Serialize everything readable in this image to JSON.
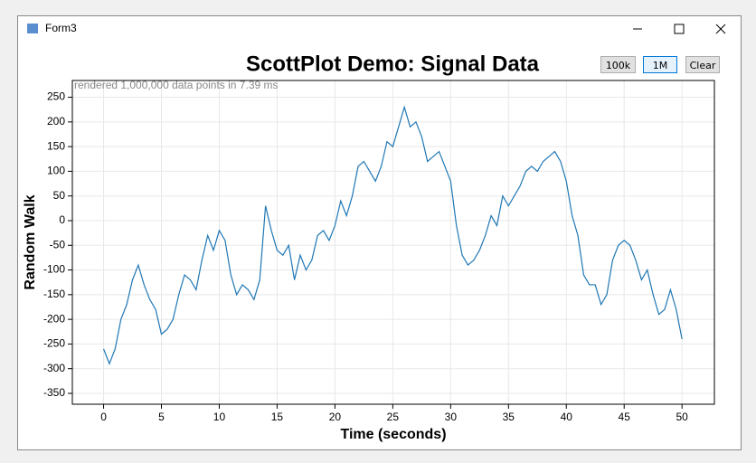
{
  "window": {
    "title": "Form3"
  },
  "buttons": [
    "100k",
    "1M",
    "Clear"
  ],
  "chart_data": {
    "type": "line",
    "title": "ScottPlot Demo: Signal Data",
    "xlabel": "Time (seconds)",
    "ylabel": "Random Walk",
    "annotation": "rendered 1,000,000 data points in 7.39 ms",
    "color": "#1f77b4",
    "grid": true,
    "x": [
      0,
      0.5,
      1,
      1.5,
      2,
      2.5,
      3,
      3.5,
      4,
      4.5,
      5,
      5.5,
      6,
      6.5,
      7,
      7.5,
      8,
      8.5,
      9,
      9.5,
      10,
      10.5,
      11,
      11.5,
      12,
      12.5,
      13,
      13.5,
      14,
      14.5,
      15,
      15.5,
      16,
      16.5,
      17,
      17.5,
      18,
      18.5,
      19,
      19.5,
      20,
      20.5,
      21,
      21.5,
      22,
      22.5,
      23,
      23.5,
      24,
      24.5,
      25,
      25.5,
      26,
      26.5,
      27,
      27.5,
      28,
      28.5,
      29,
      29.5,
      30,
      30.5,
      31,
      31.5,
      32,
      32.5,
      33,
      33.5,
      34,
      34.5,
      35,
      35.5,
      36,
      36.5,
      37,
      37.5,
      38,
      38.5,
      39,
      39.5,
      40,
      40.5,
      41,
      41.5,
      42,
      42.5,
      43,
      43.5,
      44,
      44.5,
      45,
      45.5,
      46,
      46.5,
      47,
      47.5,
      48,
      48.5,
      49,
      49.5,
      50
    ],
    "values": [
      -260,
      -290,
      -260,
      -200,
      -170,
      -120,
      -90,
      -130,
      -160,
      -180,
      -230,
      -220,
      -200,
      -150,
      -110,
      -120,
      -140,
      -80,
      -30,
      -60,
      -20,
      -40,
      -110,
      -150,
      -130,
      -140,
      -160,
      -120,
      30,
      -20,
      -60,
      -70,
      -50,
      -120,
      -70,
      -100,
      -80,
      -30,
      -20,
      -40,
      -10,
      40,
      10,
      50,
      110,
      120,
      100,
      80,
      110,
      160,
      150,
      190,
      230,
      190,
      200,
      170,
      120,
      130,
      140,
      110,
      80,
      -10,
      -70,
      -90,
      -80,
      -60,
      -30,
      10,
      -10,
      50,
      30,
      50,
      70,
      100,
      110,
      100,
      120,
      130,
      140,
      120,
      80,
      10,
      -30,
      -110,
      -130,
      -130,
      -170,
      -150,
      -80,
      -50,
      -40,
      -50,
      -80,
      -120,
      -100,
      -150,
      -190,
      -180,
      -140,
      -180,
      -240
    ],
    "xlim": [
      -2.7,
      52.8
    ],
    "ylim": [
      -372,
      284
    ],
    "xticks": [
      0,
      5,
      10,
      15,
      20,
      25,
      30,
      35,
      40,
      45,
      50
    ],
    "yticks": [
      -350,
      -300,
      -250,
      -200,
      -150,
      -100,
      -50,
      0,
      50,
      100,
      150,
      200,
      250
    ]
  }
}
